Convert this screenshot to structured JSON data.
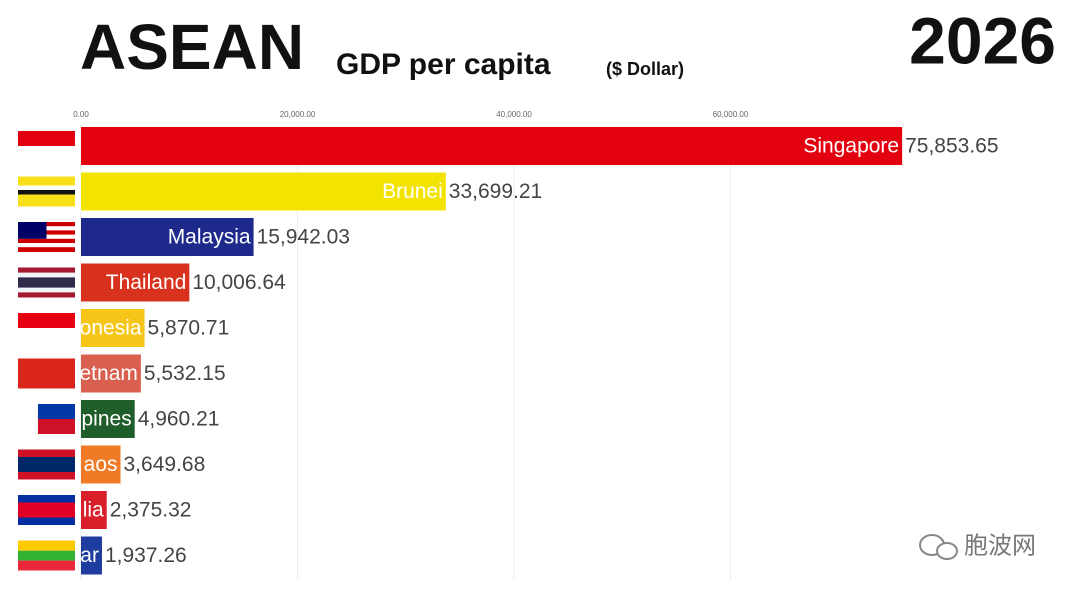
{
  "chart_data": {
    "type": "bar",
    "title": "ASEAN",
    "subtitle": "GDP per capita",
    "unit_label": "($ Dollar)",
    "year": "2026",
    "categories": [
      "Singapore",
      "Brunei",
      "Malaysia",
      "Thailand",
      "onesia",
      "etnam",
      "pines",
      "aos",
      "lia",
      "ar"
    ],
    "values": [
      75853.65,
      33699.21,
      15942.03,
      10006.64,
      5870.71,
      5532.15,
      4960.21,
      3649.68,
      2375.32,
      1937.26
    ],
    "value_labels": [
      "75,853.65",
      "33,699.21",
      "15,942.03",
      "10,006.64",
      "5,870.71",
      "5,532.15",
      "4,960.21",
      "3,649.68",
      "2,375.32",
      "1,937.26"
    ],
    "colors": [
      "#e3000f",
      "#f2e400",
      "#1d2a8c",
      "#d8321e",
      "#f5c518",
      "#d9604f",
      "#1f5e2a",
      "#f07a26",
      "#d9202a",
      "#1e3c9e"
    ],
    "xlim": [
      0,
      80000
    ],
    "xticks": [
      {
        "value": 0,
        "label": "0.00"
      },
      {
        "value": 20000,
        "label": "20,000.00"
      },
      {
        "value": 40000,
        "label": "40,000.00"
      },
      {
        "value": 60000,
        "label": "60,000.00"
      }
    ],
    "grid": true
  },
  "watermark": "胞波网"
}
